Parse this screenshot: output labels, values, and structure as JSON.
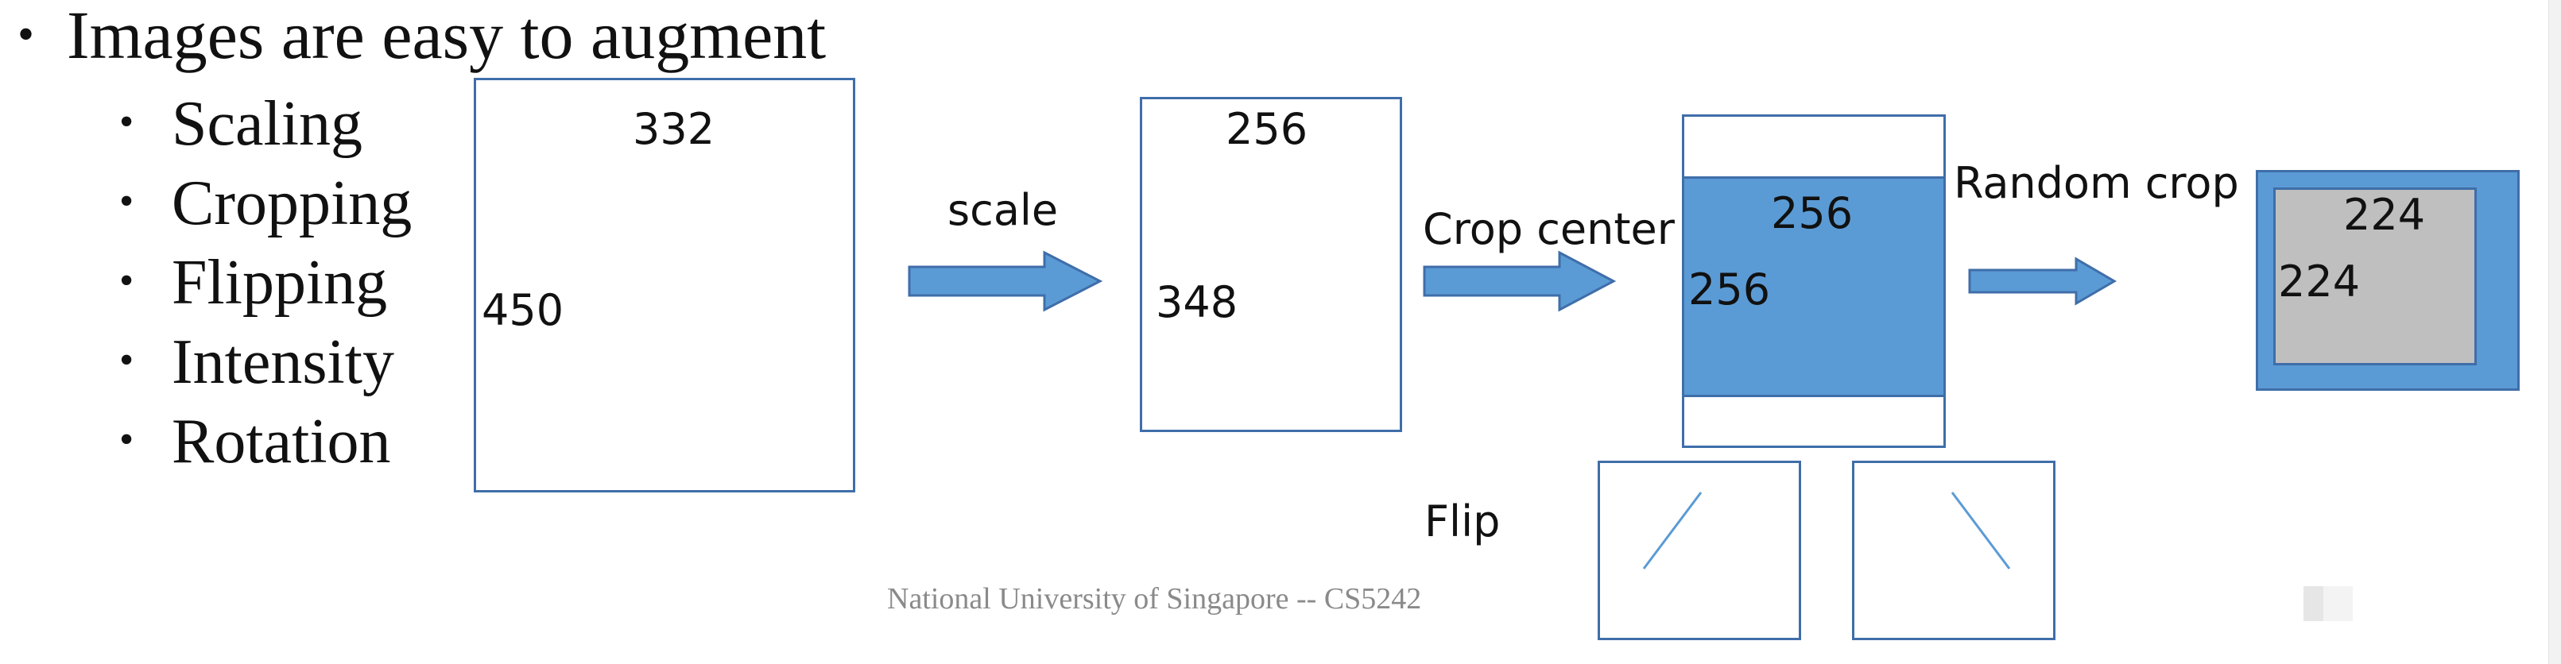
{
  "slide": {
    "title": "Images are easy to augment",
    "bullet_symbol": "•",
    "bullets": [
      "Scaling",
      "Cropping",
      "Flipping",
      "Intensity",
      "Rotation"
    ],
    "footer": "National University of Singapore -- CS5242"
  },
  "diagram": {
    "original": {
      "width_label": "332",
      "height_label": "450"
    },
    "scale_label": "scale",
    "scaled": {
      "width_label": "256",
      "height_label": "348"
    },
    "crop_center_label": "Crop center",
    "center_crop": {
      "width_label": "256",
      "height_label": "256"
    },
    "random_crop_label": "Random crop",
    "random_crop": {
      "width_label": "224",
      "height_label": "224"
    },
    "flip_label": "Flip",
    "colors": {
      "outline": "#3f6ea9",
      "arrow_fill": "#5b9bd5",
      "crop_fill": "#5b9bd5",
      "random_crop_inner": "#bfbfbf"
    }
  }
}
